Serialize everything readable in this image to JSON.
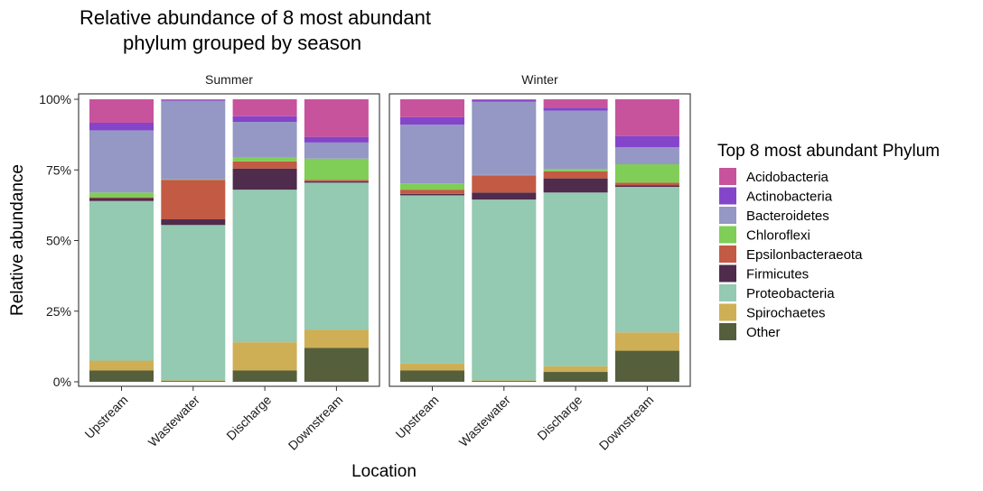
{
  "chart_data": {
    "type": "bar",
    "stacked": true,
    "title": "Relative abundance of 8 most abundant\nphylum grouped by season",
    "xlabel": "Location",
    "ylabel": "Relative abundance",
    "ylim": [
      0,
      1
    ],
    "y_ticks": [
      {
        "value": 0,
        "label": "0%"
      },
      {
        "value": 0.25,
        "label": "25%"
      },
      {
        "value": 0.5,
        "label": "50%"
      },
      {
        "value": 0.75,
        "label": "75%"
      },
      {
        "value": 1,
        "label": "100%"
      }
    ],
    "grid": false,
    "legend": {
      "title": "Top 8 most abundant Phylum",
      "placement": "right"
    },
    "categories": [
      "Upstream",
      "Wastewater",
      "Discharge",
      "Downstream"
    ],
    "stack_order_bottom_to_top": [
      "Other",
      "Spirochaetes",
      "Proteobacteria",
      "Firmicutes",
      "Epsilonbacteraeota",
      "Chloroflexi",
      "Bacteroidetes",
      "Actinobacteria",
      "Acidobacteria"
    ],
    "legend_order": [
      "Acidobacteria",
      "Actinobacteria",
      "Bacteroidetes",
      "Chloroflexi",
      "Epsilonbacteraeota",
      "Firmicutes",
      "Proteobacteria",
      "Spirochaetes",
      "Other"
    ],
    "colors": {
      "Acidobacteria": "#c7539d",
      "Actinobacteria": "#8445ca",
      "Bacteroidetes": "#9598c4",
      "Chloroflexi": "#80cd57",
      "Epsilonbacteraeota": "#c35a43",
      "Firmicutes": "#4f2b4c",
      "Proteobacteria": "#94c9b2",
      "Spirochaetes": "#cfaf55",
      "Other": "#555f3c"
    },
    "panels": [
      {
        "name": "Summer",
        "bars": {
          "Upstream": {
            "Other": 0.04,
            "Spirochaetes": 0.035,
            "Proteobacteria": 0.565,
            "Firmicutes": 0.01,
            "Epsilonbacteraeota": 0.003,
            "Chloroflexi": 0.017,
            "Bacteroidetes": 0.22,
            "Actinobacteria": 0.027,
            "Acidobacteria": 0.083
          },
          "Wastewater": {
            "Other": 0.003,
            "Spirochaetes": 0.002,
            "Proteobacteria": 0.55,
            "Firmicutes": 0.02,
            "Epsilonbacteraeota": 0.14,
            "Chloroflexi": 0.002,
            "Bacteroidetes": 0.278,
            "Actinobacteria": 0.002,
            "Acidobacteria": 0.003
          },
          "Discharge": {
            "Other": 0.04,
            "Spirochaetes": 0.1,
            "Proteobacteria": 0.54,
            "Firmicutes": 0.075,
            "Epsilonbacteraeota": 0.025,
            "Chloroflexi": 0.013,
            "Bacteroidetes": 0.127,
            "Actinobacteria": 0.02,
            "Acidobacteria": 0.06
          },
          "Downstream": {
            "Other": 0.12,
            "Spirochaetes": 0.065,
            "Proteobacteria": 0.52,
            "Firmicutes": 0.005,
            "Epsilonbacteraeota": 0.005,
            "Chloroflexi": 0.075,
            "Bacteroidetes": 0.057,
            "Actinobacteria": 0.02,
            "Acidobacteria": 0.133
          }
        }
      },
      {
        "name": "Winter",
        "bars": {
          "Upstream": {
            "Other": 0.04,
            "Spirochaetes": 0.025,
            "Proteobacteria": 0.595,
            "Firmicutes": 0.005,
            "Epsilonbacteraeota": 0.015,
            "Chloroflexi": 0.022,
            "Bacteroidetes": 0.208,
            "Actinobacteria": 0.027,
            "Acidobacteria": 0.063
          },
          "Wastewater": {
            "Other": 0.003,
            "Spirochaetes": 0.002,
            "Proteobacteria": 0.64,
            "Firmicutes": 0.025,
            "Epsilonbacteraeota": 0.06,
            "Chloroflexi": 0.002,
            "Bacteroidetes": 0.26,
            "Actinobacteria": 0.005,
            "Acidobacteria": 0.003
          },
          "Discharge": {
            "Other": 0.035,
            "Spirochaetes": 0.02,
            "Proteobacteria": 0.615,
            "Firmicutes": 0.05,
            "Epsilonbacteraeota": 0.025,
            "Chloroflexi": 0.008,
            "Bacteroidetes": 0.207,
            "Actinobacteria": 0.01,
            "Acidobacteria": 0.03
          },
          "Downstream": {
            "Other": 0.11,
            "Spirochaetes": 0.065,
            "Proteobacteria": 0.515,
            "Firmicutes": 0.005,
            "Epsilonbacteraeota": 0.01,
            "Chloroflexi": 0.065,
            "Bacteroidetes": 0.06,
            "Actinobacteria": 0.04,
            "Acidobacteria": 0.13
          }
        }
      }
    ]
  }
}
